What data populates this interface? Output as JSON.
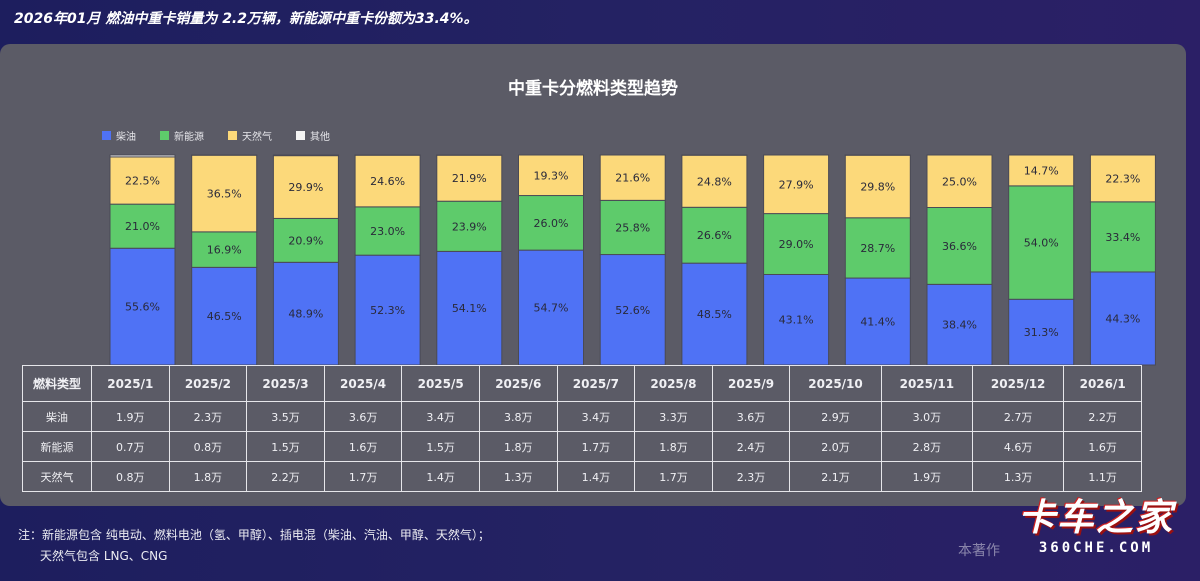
{
  "headline": "2026年01月 燃油中重卡销量为 2.2万辆，新能源中重卡份额为33.4%。",
  "watermark": "本著作",
  "logo": {
    "main": "卡车之家",
    "sub": "360CHE.COM"
  },
  "note": {
    "line1": "注：新能源包含 纯电动、燃料电池（氢、甲醇）、插电混（柴油、汽油、甲醇、天然气）；",
    "line2": "天然气包含 LNG、CNG"
  },
  "colors": {
    "diesel": "#4f72f5",
    "nev": "#5ecb6b",
    "gas": "#fcd97a",
    "other": "#f4f4f4"
  },
  "chart_data": {
    "type": "bar",
    "stacked": true,
    "percent": true,
    "title": "中重卡分燃料类型趋势",
    "categories": [
      "2025/1",
      "2025/2",
      "2025/3",
      "2025/4",
      "2025/5",
      "2025/6",
      "2025/7",
      "2025/8",
      "2025/9",
      "2025/10",
      "2025/11",
      "2025/12",
      "2026/1"
    ],
    "series": [
      {
        "name": "柴油",
        "color": "#4f72f5",
        "labels": [
          "55.6%",
          "46.5%",
          "48.9%",
          "52.3%",
          "54.1%",
          "54.7%",
          "52.6%",
          "48.5%",
          "43.1%",
          "41.4%",
          "38.4%",
          "31.3%",
          "44.3%"
        ],
        "values": [
          55.6,
          46.5,
          48.9,
          52.3,
          54.1,
          54.7,
          52.6,
          48.5,
          43.1,
          41.4,
          38.4,
          31.3,
          44.3
        ]
      },
      {
        "name": "新能源",
        "color": "#5ecb6b",
        "labels": [
          "21.0%",
          "16.9%",
          "20.9%",
          "23.0%",
          "23.9%",
          "26.0%",
          "25.8%",
          "26.6%",
          "29.0%",
          "28.7%",
          "36.6%",
          "54.0%",
          "33.4%"
        ],
        "values": [
          21.0,
          16.9,
          20.9,
          23.0,
          23.9,
          26.0,
          25.8,
          26.6,
          29.0,
          28.7,
          36.6,
          54.0,
          33.4
        ]
      },
      {
        "name": "天然气",
        "color": "#fcd97a",
        "labels": [
          "22.5%",
          "36.5%",
          "29.9%",
          "24.6%",
          "21.9%",
          "19.3%",
          "21.6%",
          "24.8%",
          "27.9%",
          "29.8%",
          "25.0%",
          "14.7%",
          "22.3%"
        ],
        "values": [
          22.5,
          36.5,
          29.9,
          24.6,
          21.9,
          19.3,
          21.6,
          24.8,
          27.9,
          29.8,
          25.0,
          14.7,
          22.3
        ]
      },
      {
        "name": "其他",
        "color": "#f4f4f4",
        "labels": [],
        "values": [
          0.9,
          0.1,
          0.3,
          0.1,
          0.1,
          0.0,
          0.0,
          0.1,
          0.0,
          0.1,
          0.0,
          0.0,
          0.0
        ]
      }
    ],
    "ylim": [
      0,
      100
    ],
    "legend": "top-left",
    "table": {
      "header": "燃料类型",
      "rows": [
        {
          "label": "柴油",
          "cells": [
            "1.9万",
            "2.3万",
            "3.5万",
            "3.6万",
            "3.4万",
            "3.8万",
            "3.4万",
            "3.3万",
            "3.6万",
            "2.9万",
            "3.0万",
            "2.7万",
            "2.2万"
          ]
        },
        {
          "label": "新能源",
          "cells": [
            "0.7万",
            "0.8万",
            "1.5万",
            "1.6万",
            "1.5万",
            "1.8万",
            "1.7万",
            "1.8万",
            "2.4万",
            "2.0万",
            "2.8万",
            "4.6万",
            "1.6万"
          ]
        },
        {
          "label": "天然气",
          "cells": [
            "0.8万",
            "1.8万",
            "2.2万",
            "1.7万",
            "1.4万",
            "1.3万",
            "1.4万",
            "1.7万",
            "2.3万",
            "2.1万",
            "1.9万",
            "1.3万",
            "1.1万"
          ]
        }
      ]
    }
  }
}
